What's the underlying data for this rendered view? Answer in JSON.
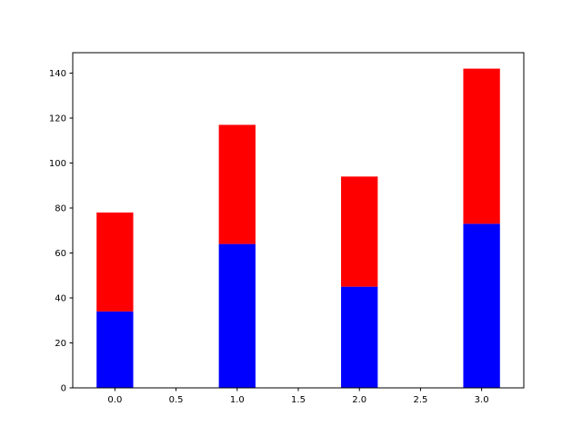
{
  "chart_data": {
    "type": "bar",
    "stacked": true,
    "x": [
      0,
      1,
      2,
      3
    ],
    "series": [
      {
        "values": [
          34,
          64,
          45,
          73
        ],
        "color": "#0000ff"
      },
      {
        "values": [
          44,
          53,
          49,
          69
        ],
        "color": "#ff0000"
      }
    ],
    "bar_width": 0.3,
    "xlim": [
      -0.345,
      3.345
    ],
    "ylim": [
      0,
      149.1
    ],
    "x_ticks": [
      0.0,
      0.5,
      1.0,
      1.5,
      2.0,
      2.5,
      3.0
    ],
    "x_tick_labels": [
      "0.0",
      "0.5",
      "1.0",
      "1.5",
      "2.0",
      "2.5",
      "3.0"
    ],
    "y_ticks": [
      0,
      20,
      40,
      60,
      80,
      100,
      120,
      140
    ],
    "y_tick_labels": [
      "0",
      "20",
      "40",
      "60",
      "80",
      "100",
      "120",
      "140"
    ],
    "title": "",
    "xlabel": "",
    "ylabel": "",
    "grid": false,
    "legend": "none"
  }
}
